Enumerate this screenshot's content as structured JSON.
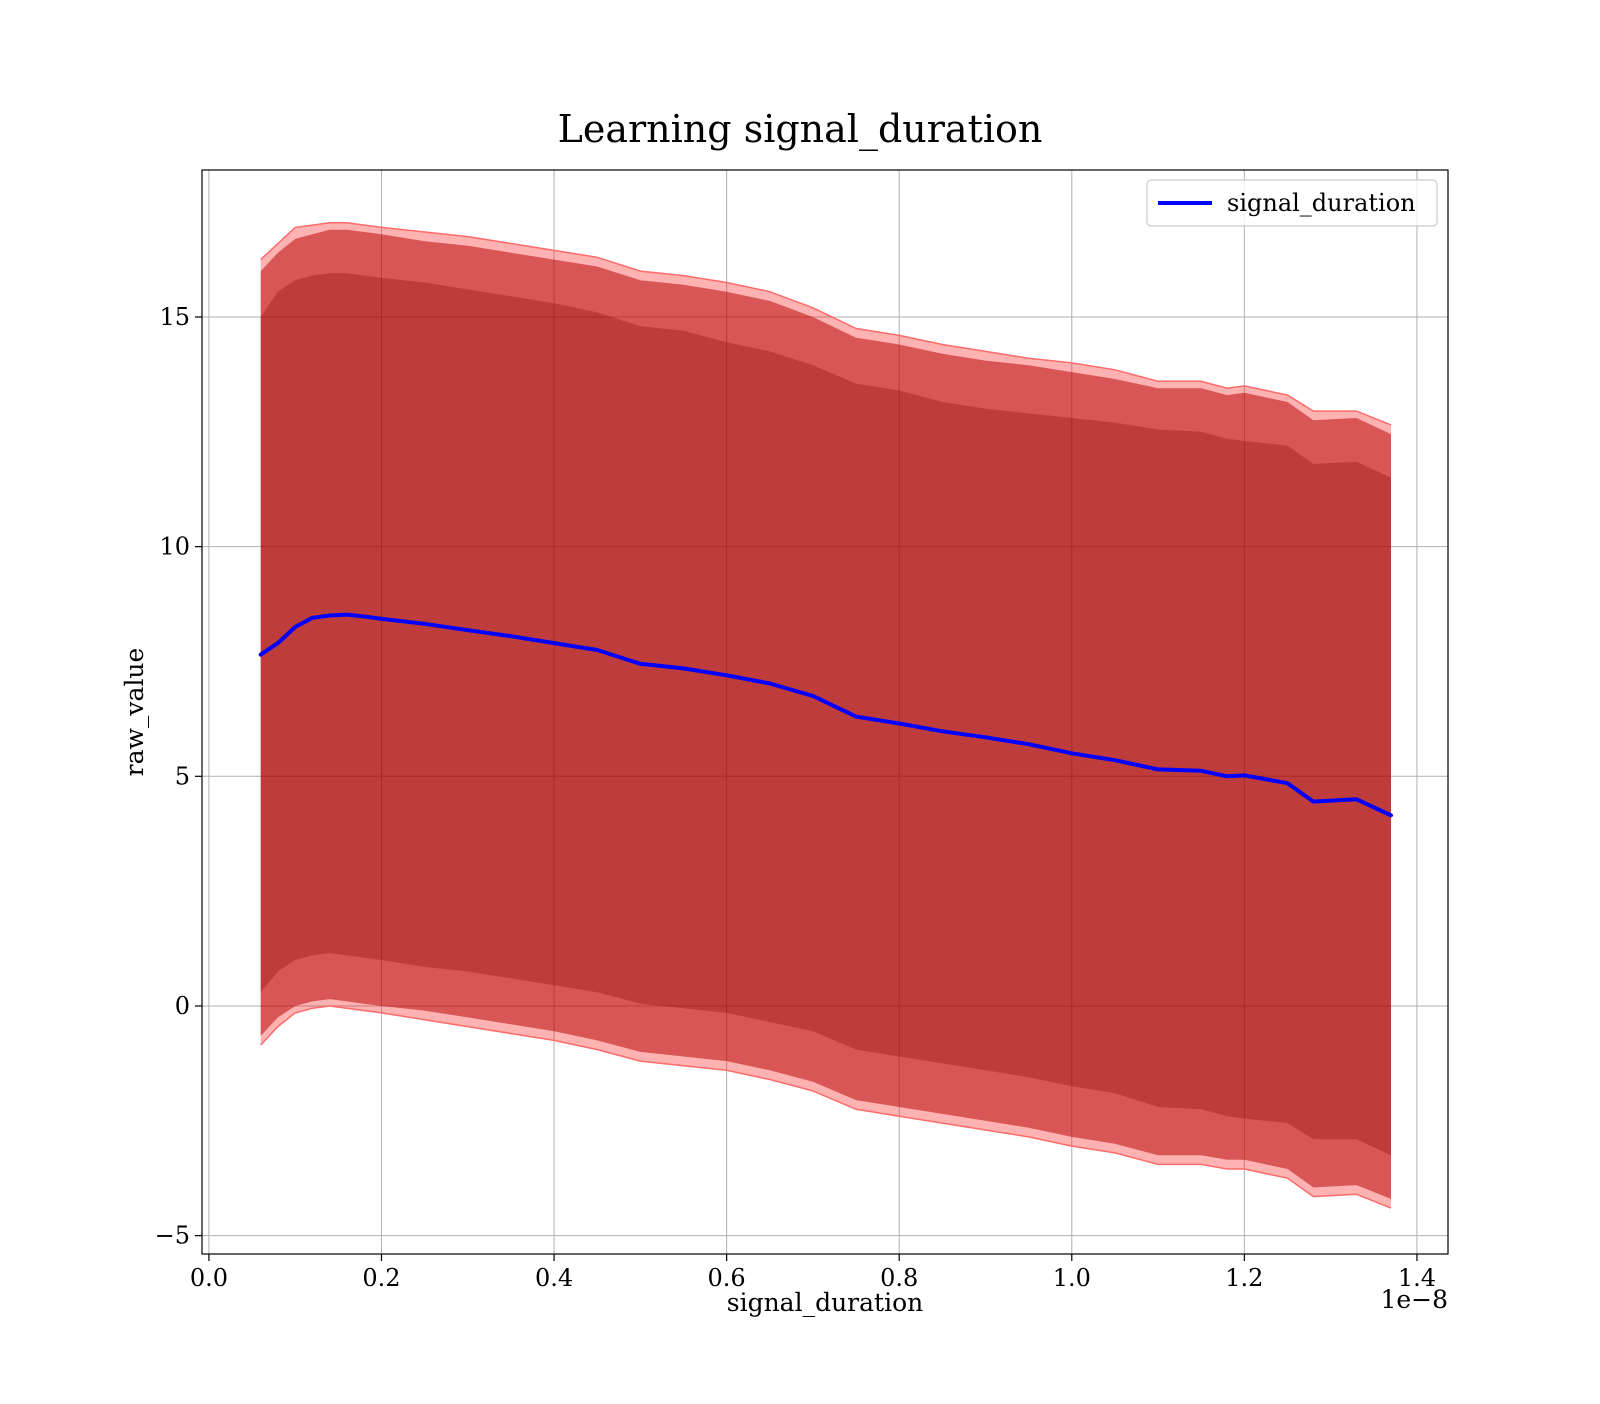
{
  "chart_data": {
    "type": "line",
    "title": "Learning signal_duration",
    "xlabel": "signal_duration",
    "ylabel": "raw_value",
    "x_offset_text": "1e−8",
    "x_ticks": [
      0.0,
      0.2,
      0.4,
      0.6,
      0.8,
      1.0,
      1.2,
      1.4
    ],
    "x_tick_labels": [
      "0.0",
      "0.2",
      "0.4",
      "0.6",
      "0.8",
      "1.0",
      "1.2",
      "1.4"
    ],
    "y_ticks": [
      -5,
      0,
      5,
      10,
      15
    ],
    "y_tick_labels": [
      "−5",
      "0",
      "5",
      "10",
      "15"
    ],
    "xlim": [
      -0.008,
      1.436
    ],
    "ylim": [
      -5.4,
      18.2
    ],
    "grid": true,
    "legend": {
      "position": "upper right",
      "entries": [
        {
          "label": "signal_duration",
          "color": "#0000ff"
        }
      ]
    },
    "colors": {
      "line": "#0000ff",
      "inner_band": "#800000",
      "outer_band": "#ff0000",
      "grid": "#b0b0b0",
      "axes": "#000000"
    },
    "x": [
      0.06,
      0.08,
      0.1,
      0.12,
      0.14,
      0.16,
      0.18,
      0.2,
      0.25,
      0.3,
      0.35,
      0.4,
      0.45,
      0.5,
      0.55,
      0.6,
      0.65,
      0.7,
      0.75,
      0.8,
      0.85,
      0.9,
      0.95,
      1.0,
      1.05,
      1.1,
      1.15,
      1.18,
      1.2,
      1.25,
      1.28,
      1.33,
      1.37
    ],
    "series": [
      {
        "name": "signal_duration",
        "values": [
          7.65,
          7.9,
          8.25,
          8.45,
          8.5,
          8.52,
          8.48,
          8.43,
          8.32,
          8.18,
          8.05,
          7.9,
          7.75,
          7.45,
          7.35,
          7.2,
          7.02,
          6.75,
          6.3,
          6.15,
          5.98,
          5.85,
          5.7,
          5.5,
          5.35,
          5.15,
          5.12,
          5.0,
          5.02,
          4.85,
          4.45,
          4.5,
          4.15
        ],
        "band_inner_upper": [
          15.0,
          15.55,
          15.8,
          15.9,
          15.95,
          15.95,
          15.9,
          15.85,
          15.75,
          15.6,
          15.45,
          15.3,
          15.1,
          14.8,
          14.7,
          14.45,
          14.25,
          13.95,
          13.55,
          13.4,
          13.15,
          13.0,
          12.9,
          12.8,
          12.7,
          12.55,
          12.5,
          12.35,
          12.3,
          12.2,
          11.8,
          11.85,
          11.5
        ],
        "band_inner_lower": [
          0.3,
          0.75,
          1.0,
          1.1,
          1.15,
          1.1,
          1.05,
          1.0,
          0.85,
          0.75,
          0.6,
          0.45,
          0.3,
          0.05,
          -0.05,
          -0.15,
          -0.35,
          -0.55,
          -0.95,
          -1.1,
          -1.25,
          -1.4,
          -1.55,
          -1.75,
          -1.9,
          -2.2,
          -2.25,
          -2.4,
          -2.45,
          -2.55,
          -2.9,
          -2.9,
          -3.25
        ],
        "band_outer_upper": [
          16.0,
          16.4,
          16.7,
          16.8,
          16.9,
          16.9,
          16.85,
          16.8,
          16.65,
          16.55,
          16.4,
          16.25,
          16.1,
          15.8,
          15.7,
          15.55,
          15.35,
          15.0,
          14.55,
          14.4,
          14.2,
          14.05,
          13.95,
          13.8,
          13.65,
          13.45,
          13.45,
          13.3,
          13.35,
          13.15,
          12.75,
          12.8,
          12.45
        ],
        "band_outer_lower": [
          -0.65,
          -0.25,
          0.0,
          0.1,
          0.15,
          0.1,
          0.05,
          0.0,
          -0.1,
          -0.25,
          -0.4,
          -0.55,
          -0.75,
          -1.0,
          -1.1,
          -1.2,
          -1.4,
          -1.65,
          -2.05,
          -2.2,
          -2.35,
          -2.5,
          -2.65,
          -2.85,
          -3.0,
          -3.25,
          -3.25,
          -3.35,
          -3.35,
          -3.55,
          -3.95,
          -3.9,
          -4.2
        ],
        "band_outer_upper_edge": [
          16.25,
          16.6,
          16.95,
          17.0,
          17.05,
          17.05,
          17.0,
          16.95,
          16.85,
          16.75,
          16.6,
          16.45,
          16.3,
          16.0,
          15.9,
          15.75,
          15.55,
          15.2,
          14.75,
          14.6,
          14.4,
          14.25,
          14.1,
          14.0,
          13.85,
          13.6,
          13.6,
          13.45,
          13.5,
          13.3,
          12.95,
          12.95,
          12.65
        ],
        "band_outer_lower_edge": [
          -0.85,
          -0.45,
          -0.15,
          -0.05,
          0.0,
          -0.05,
          -0.1,
          -0.15,
          -0.3,
          -0.45,
          -0.6,
          -0.75,
          -0.95,
          -1.2,
          -1.3,
          -1.4,
          -1.6,
          -1.85,
          -2.25,
          -2.4,
          -2.55,
          -2.7,
          -2.85,
          -3.05,
          -3.2,
          -3.45,
          -3.45,
          -3.55,
          -3.55,
          -3.75,
          -4.15,
          -4.1,
          -4.4
        ]
      }
    ]
  }
}
